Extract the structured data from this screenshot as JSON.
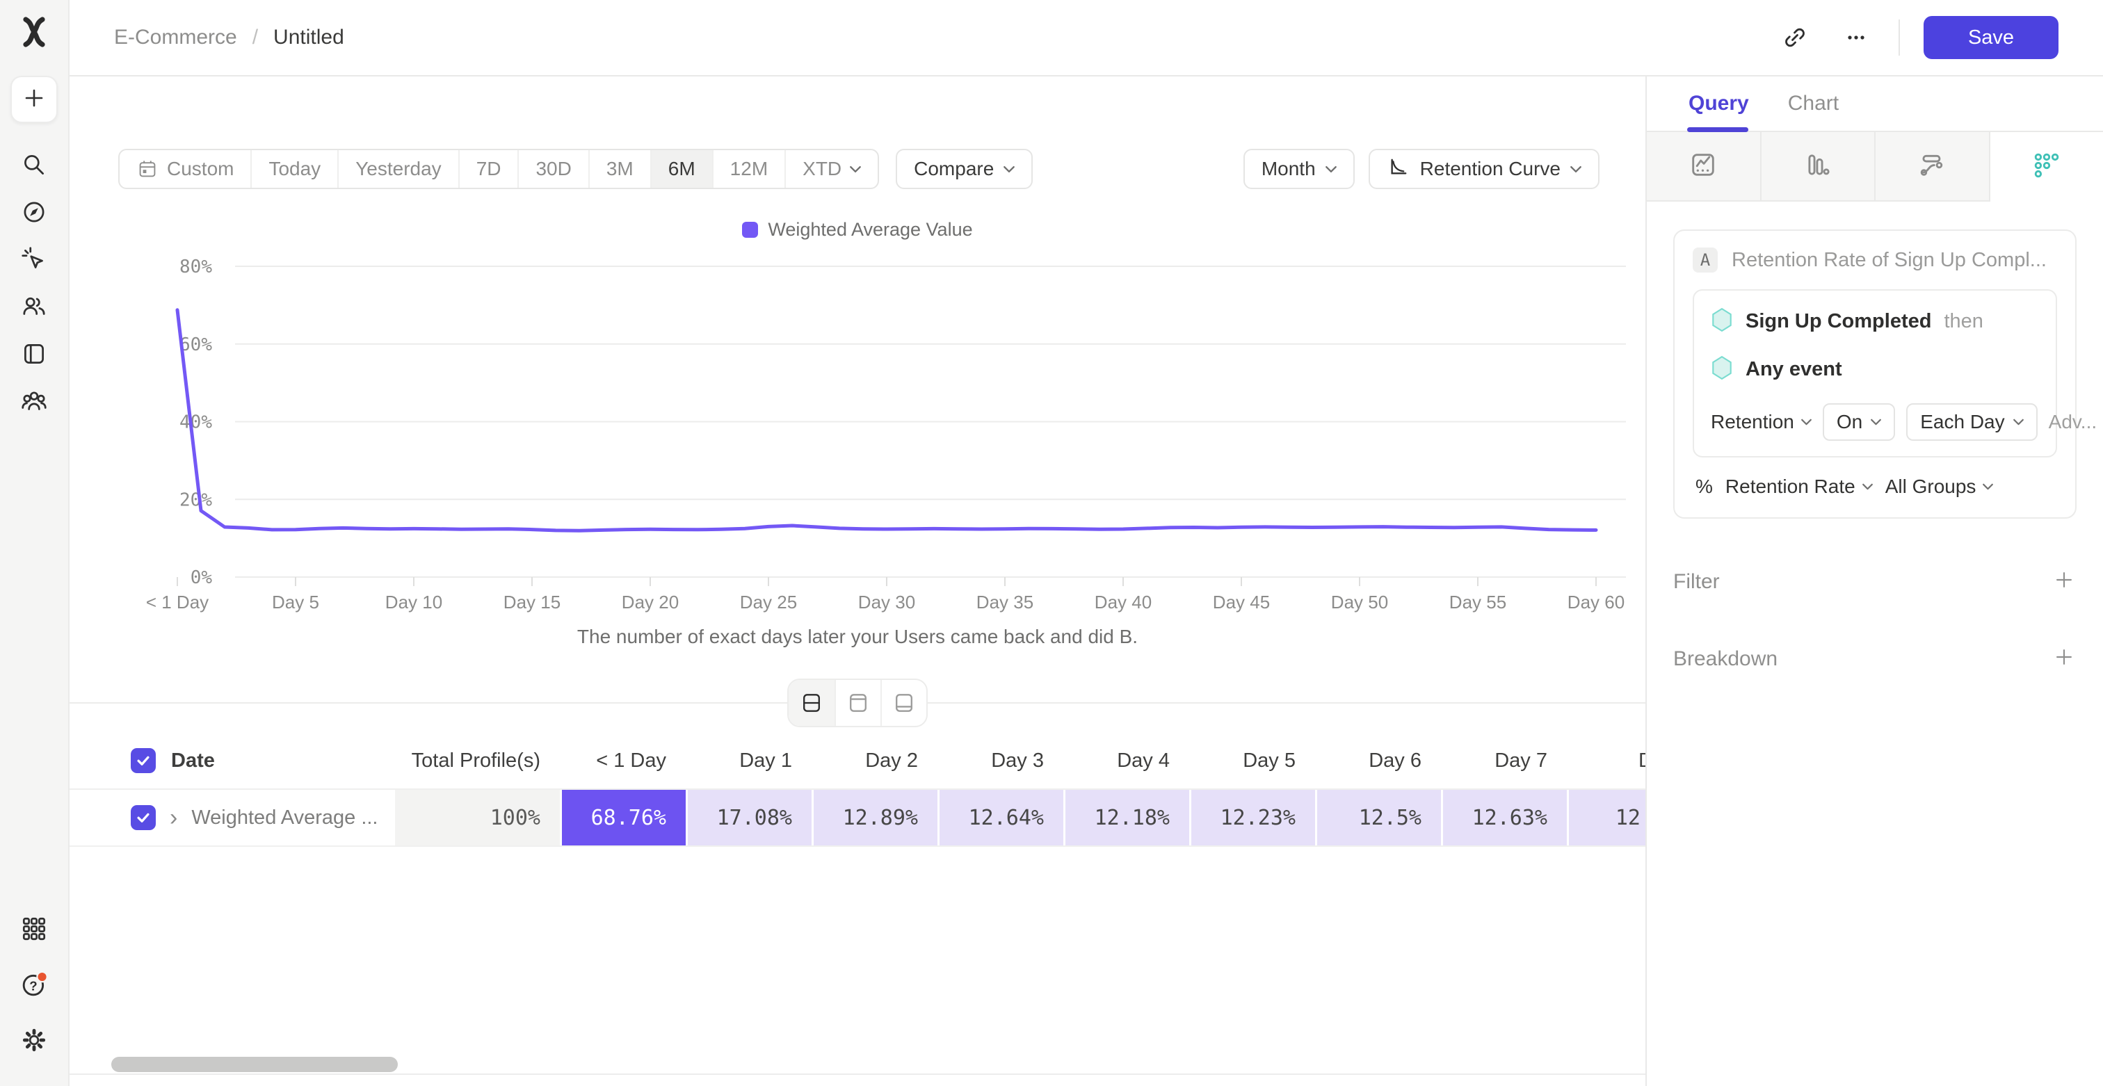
{
  "header": {
    "breadcrumb": {
      "project": "E-Commerce",
      "separator": "/",
      "title": "Untitled"
    },
    "save_label": "Save"
  },
  "toolbar": {
    "date_ranges": [
      "Custom",
      "Today",
      "Yesterday",
      "7D",
      "30D",
      "3M",
      "6M",
      "12M",
      "XTD"
    ],
    "active_range": "6M",
    "compare_label": "Compare",
    "granularity": "Month",
    "chart_type": "Retention Curve"
  },
  "chart_data": {
    "type": "line",
    "legend": [
      "Weighted Average Value"
    ],
    "legend_position": "top",
    "series_color": "#7358f5",
    "grid": true,
    "ylim": [
      0,
      80
    ],
    "yticks": [
      0,
      20,
      40,
      60,
      80
    ],
    "ytick_labels": [
      "0%",
      "20%",
      "40%",
      "60%",
      "80%"
    ],
    "xticks": [
      0,
      5,
      10,
      15,
      20,
      25,
      30,
      35,
      40,
      45,
      50,
      55,
      60
    ],
    "xtick_labels": [
      "< 1 Day",
      "Day 5",
      "Day 10",
      "Day 15",
      "Day 20",
      "Day 25",
      "Day 30",
      "Day 35",
      "Day 40",
      "Day 45",
      "Day 50",
      "Day 55",
      "Day 60"
    ],
    "x_unit_days": [
      0,
      1,
      2,
      3,
      4,
      5,
      6,
      7,
      8,
      9,
      10,
      11,
      12,
      13,
      14,
      15,
      16,
      17,
      18,
      19,
      20,
      21,
      22,
      23,
      24,
      25,
      26,
      27,
      28,
      29,
      30,
      31,
      32,
      33,
      34,
      35,
      36,
      37,
      38,
      39,
      40,
      41,
      42,
      43,
      44,
      45,
      46,
      47,
      48,
      49,
      50,
      51,
      52,
      53,
      54,
      55,
      56,
      57,
      58,
      59,
      60
    ],
    "values": [
      68.76,
      17.08,
      12.89,
      12.64,
      12.18,
      12.23,
      12.5,
      12.63,
      12.5,
      12.4,
      12.45,
      12.4,
      12.3,
      12.35,
      12.4,
      12.25,
      12.0,
      11.95,
      12.1,
      12.25,
      12.3,
      12.25,
      12.2,
      12.3,
      12.5,
      13.0,
      13.25,
      12.9,
      12.55,
      12.4,
      12.35,
      12.4,
      12.45,
      12.4,
      12.35,
      12.4,
      12.5,
      12.45,
      12.4,
      12.3,
      12.35,
      12.55,
      12.75,
      12.8,
      12.7,
      12.85,
      12.9,
      12.85,
      12.8,
      12.85,
      12.9,
      12.95,
      12.85,
      12.8,
      12.75,
      12.85,
      12.9,
      12.55,
      12.25,
      12.15,
      12.1
    ],
    "xlabel": "The number of exact days later your Users came back and did B.",
    "ylabel": ""
  },
  "view_toggle": {
    "options": [
      "split-view",
      "chart-only",
      "table-only"
    ],
    "active": "split-view"
  },
  "table": {
    "columns": [
      "Date",
      "Total Profile(s)",
      "< 1 Day",
      "Day 1",
      "Day 2",
      "Day 3",
      "Day 4",
      "Day 5",
      "Day 6",
      "Day 7",
      "D"
    ],
    "rows": [
      {
        "label": "Weighted Average ...",
        "values": [
          "100%",
          "68.76%",
          "17.08%",
          "12.89%",
          "12.64%",
          "12.18%",
          "12.23%",
          "12.5%",
          "12.63%",
          "12."
        ]
      }
    ]
  },
  "side_panel": {
    "tabs": [
      "Query",
      "Chart"
    ],
    "active_tab": "Query",
    "report_tabs": [
      "insights",
      "funnels",
      "flows",
      "retention"
    ],
    "active_report_tab": "retention",
    "query": {
      "badge": "A",
      "title": "Retention Rate of Sign Up Compl...",
      "steps": [
        {
          "name": "Sign Up Completed",
          "suffix": "then"
        },
        {
          "name": "Any event",
          "suffix": ""
        }
      ],
      "controls_row1": [
        {
          "label": "Retention",
          "variant": "text"
        },
        {
          "label": "On",
          "variant": "box"
        },
        {
          "label": "Each Day",
          "variant": "box"
        },
        {
          "label": "Adv...",
          "variant": "muted"
        }
      ],
      "row2_prefix": "%",
      "controls_row2": [
        {
          "label": "Retention Rate"
        },
        {
          "label": "All Groups"
        }
      ]
    },
    "sections": [
      {
        "label": "Filter"
      },
      {
        "label": "Breakdown"
      }
    ]
  },
  "icons": {
    "rail": [
      "mixpanel-logo",
      "plus-icon",
      "search-icon",
      "compass-icon",
      "cursor-spark-icon",
      "users-icon",
      "board-icon",
      "cohorts-icon",
      "apps-grid-icon",
      "help-icon",
      "settings-gear-icon"
    ],
    "header": [
      "link-icon",
      "more-icon"
    ],
    "toolbar": [
      "calendar-icon",
      "chevron-down-icon",
      "retention-curve-icon"
    ],
    "report_tabs": [
      "insights-icon",
      "funnels-icon",
      "flows-icon",
      "retention-icon"
    ],
    "accent_colors": {
      "primary_purple": "#4c42df",
      "chart_purple": "#7358f5",
      "hot_cell": "#6d53f1",
      "warm_cell": "#e6e0f9",
      "teal": "#3fc0b6",
      "alert_red": "#e8542f"
    }
  }
}
